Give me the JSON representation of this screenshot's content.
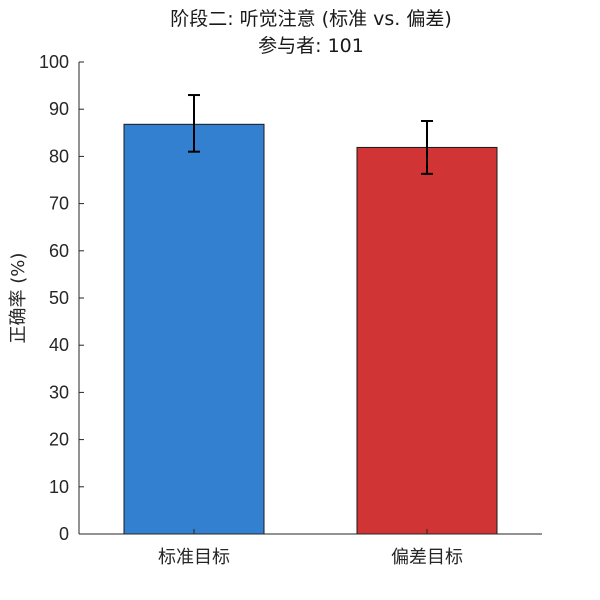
{
  "chart_data": {
    "type": "bar",
    "title": "阶段二: 听觉注意 (标准 vs. 偏差)",
    "subtitle": "参与者: 101",
    "xlabel": "",
    "ylabel": "正确率 (%)",
    "categories": [
      "标准目标",
      "偏差目标"
    ],
    "values": [
      86.8,
      81.9
    ],
    "error_upper": [
      93.0,
      87.5
    ],
    "error_lower": [
      81.0,
      76.3
    ],
    "colors": [
      "#3480d0",
      "#d03434"
    ],
    "ylim": [
      0,
      100
    ],
    "yticks": [
      0,
      10,
      20,
      30,
      40,
      50,
      60,
      70,
      80,
      90,
      100
    ],
    "grid": false,
    "legend": "none"
  }
}
